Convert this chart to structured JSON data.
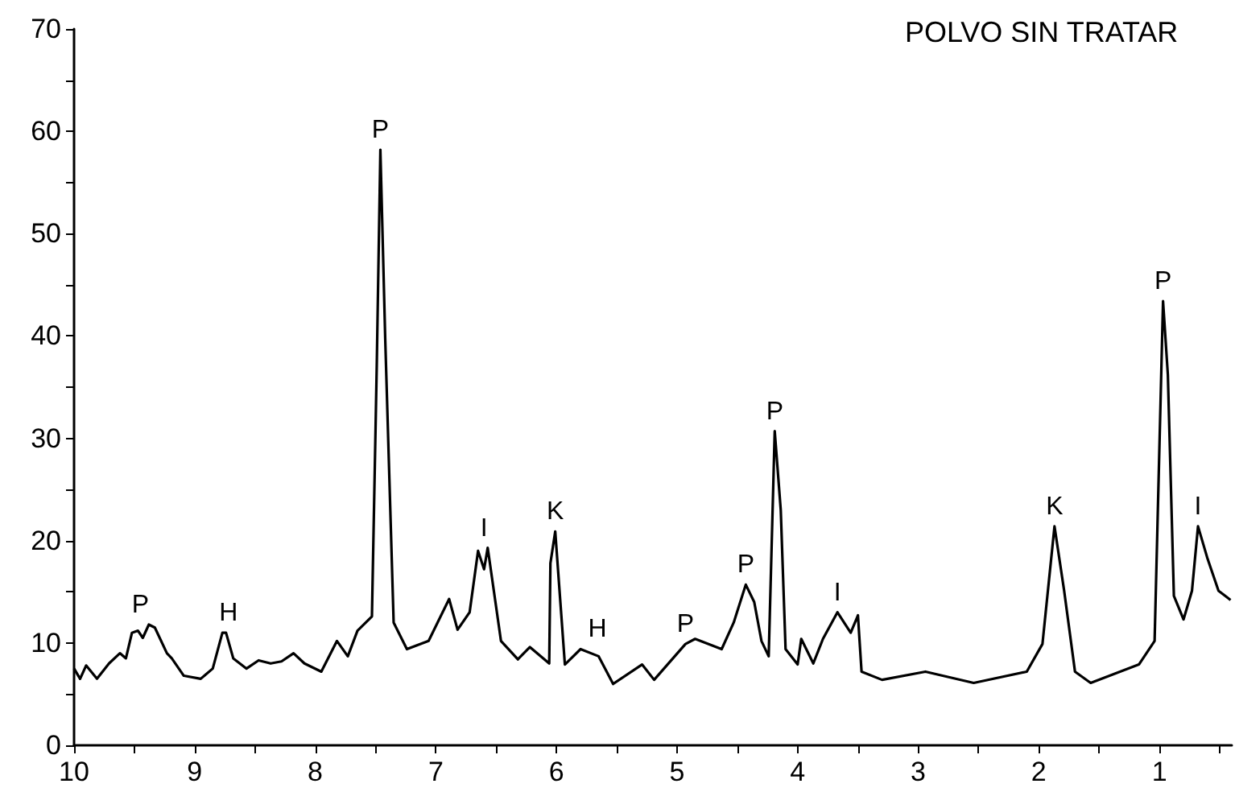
{
  "chart_data": {
    "type": "line",
    "title": "POLVO SIN TRATAR",
    "x": [
      10,
      9.95,
      9.9,
      9.81,
      9.71,
      9.62,
      9.57,
      9.52,
      9.47,
      9.43,
      9.38,
      9.33,
      9.23,
      9.19,
      9.09,
      8.95,
      8.85,
      8.77,
      8.74,
      8.68,
      8.57,
      8.47,
      8.37,
      8.28,
      8.18,
      8.09,
      7.95,
      7.82,
      7.73,
      7.65,
      7.53,
      7.49,
      7.46,
      7.42,
      7.35,
      7.24,
      7.06,
      6.89,
      6.82,
      6.72,
      6.65,
      6.6,
      6.57,
      6.46,
      6.32,
      6.22,
      6.06,
      6.05,
      6.01,
      5.93,
      5.8,
      5.65,
      5.53,
      5.29,
      5.19,
      4.93,
      4.85,
      4.63,
      4.53,
      4.43,
      4.36,
      4.3,
      4.24,
      4.19,
      4.14,
      4.1,
      4.0,
      3.97,
      3.87,
      3.79,
      3.67,
      3.56,
      3.5,
      3.47,
      3.3,
      2.94,
      2.54,
      2.1,
      1.97,
      1.87,
      1.79,
      1.7,
      1.57,
      1.17,
      1.04,
      0.97,
      0.93,
      0.88,
      0.8,
      0.73,
      0.68,
      0.6,
      0.51,
      0.41
    ],
    "series": [
      {
        "color": "#000000",
        "values": [
          7.5,
          6.5,
          7.8,
          6.5,
          8,
          9,
          8.5,
          11,
          11.2,
          10.5,
          11.8,
          11.5,
          9,
          8.5,
          6.8,
          6.5,
          7.5,
          11,
          11,
          8.5,
          7.5,
          8.3,
          8,
          8.2,
          9,
          8,
          7.2,
          10.2,
          8.7,
          11.2,
          12.6,
          37.1,
          58.2,
          39.8,
          12,
          9.4,
          10.2,
          14.3,
          11.3,
          13,
          19,
          17.2,
          19.3,
          10.2,
          8.4,
          9.6,
          8,
          17.8,
          20.9,
          7.9,
          9.4,
          8.7,
          6,
          7.9,
          6.4,
          9.9,
          10.4,
          9.4,
          12,
          15.7,
          14,
          10.2,
          8.7,
          30.7,
          23,
          9.4,
          7.9,
          10.4,
          8,
          10.4,
          13,
          11,
          12.7,
          7.2,
          6.4,
          7.2,
          6.1,
          7.2,
          9.9,
          21.4,
          15.1,
          7.2,
          6.1,
          7.9,
          10.2,
          43.4,
          36.2,
          14.6,
          12.3,
          15.1,
          21.4,
          18.2,
          15.1,
          14.2
        ]
      }
    ],
    "xlim": [
      10,
      0.4
    ],
    "xticks": [
      10,
      {
        "value": 9.5,
        "label": null
      },
      9,
      {
        "value": 8.5,
        "label": null
      },
      8,
      {
        "value": 7.5,
        "label": null
      },
      7,
      {
        "value": 6.5,
        "label": null
      },
      6,
      {
        "value": 5.5,
        "label": null
      },
      5,
      {
        "value": 4.5,
        "label": null
      },
      4,
      {
        "value": 3.5,
        "label": null
      },
      3,
      {
        "value": 2.5,
        "label": null
      },
      2,
      {
        "value": 1.5,
        "label": null
      },
      1,
      {
        "value": 0.5,
        "label": null
      }
    ],
    "ylim": [
      0,
      70
    ],
    "yticks": [
      0,
      {
        "value": 5,
        "label": null
      },
      10,
      {
        "value": 15,
        "label": null
      },
      20,
      {
        "value": 25,
        "label": null
      },
      30,
      {
        "value": 35,
        "label": null
      },
      40,
      {
        "value": 45,
        "label": null
      },
      50,
      {
        "value": 55,
        "label": null
      },
      60,
      {
        "value": 65,
        "label": null
      },
      70
    ],
    "grid": false,
    "marker": "none",
    "line_style": "solid",
    "annotations": [
      {
        "text": "P",
        "x": 9.45,
        "y": 11.8
      },
      {
        "text": "H",
        "x": 8.72,
        "y": 11
      },
      {
        "text": "P",
        "x": 7.46,
        "y": 58.2
      },
      {
        "text": "I",
        "x": 6.6,
        "y": 19.3
      },
      {
        "text": "K",
        "x": 6.01,
        "y": 20.9
      },
      {
        "text": "H",
        "x": 5.66,
        "y": 9.4
      },
      {
        "text": "P",
        "x": 4.93,
        "y": 9.9
      },
      {
        "text": "P",
        "x": 4.43,
        "y": 15.7
      },
      {
        "text": "P",
        "x": 4.19,
        "y": 30.7
      },
      {
        "text": "I",
        "x": 3.67,
        "y": 13
      },
      {
        "text": "K",
        "x": 1.87,
        "y": 21.4
      },
      {
        "text": "P",
        "x": 0.97,
        "y": 43.4
      },
      {
        "text": "I",
        "x": 0.68,
        "y": 21.4
      }
    ]
  }
}
